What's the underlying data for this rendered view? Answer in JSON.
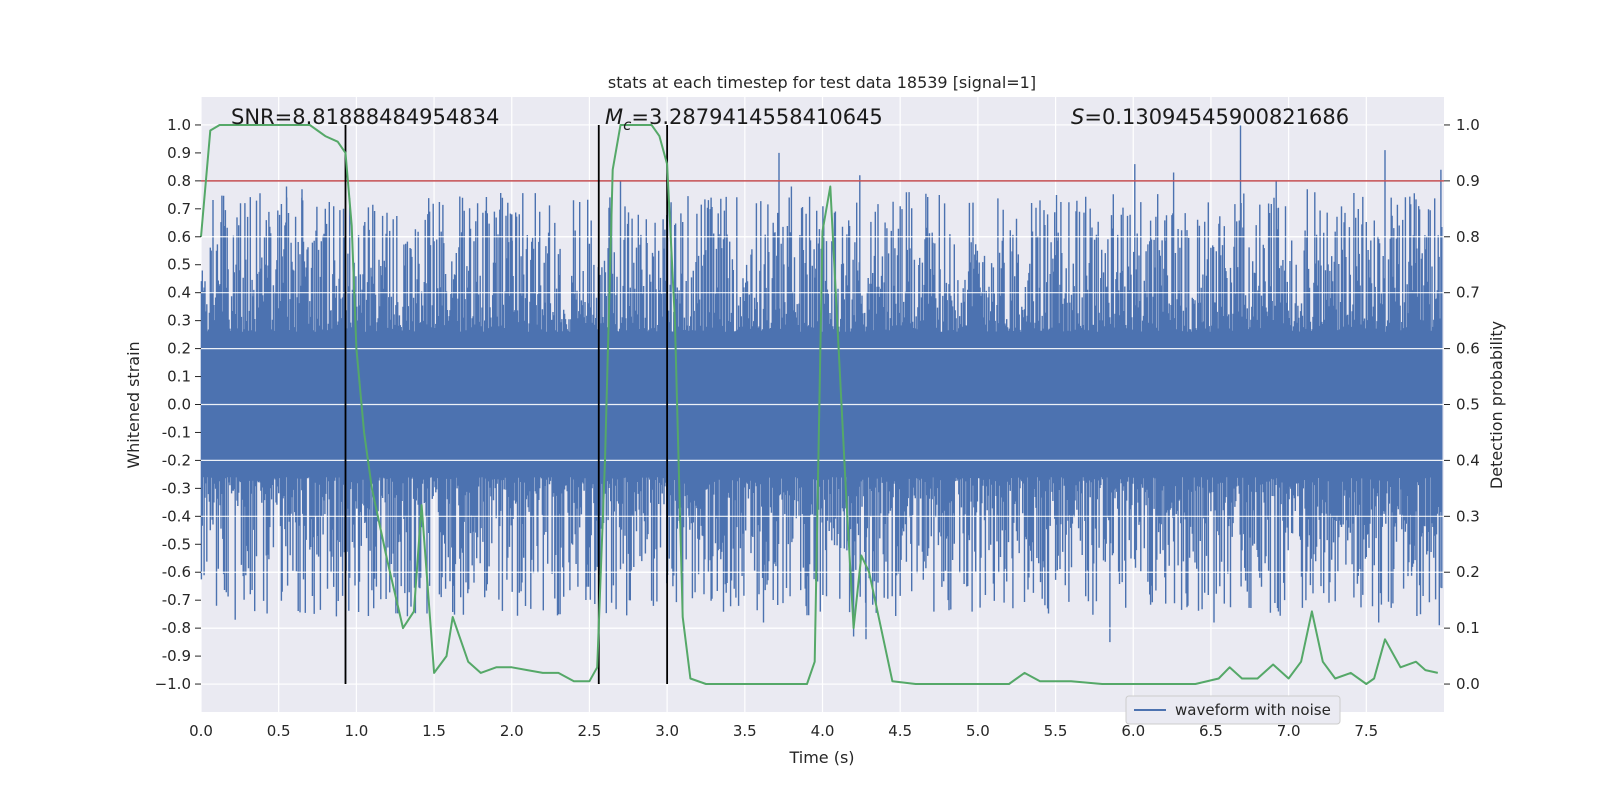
{
  "chart_data": {
    "type": "line",
    "title": "stats at each timestep for test data 18539 [signal=1]",
    "xlabel": "Time (s)",
    "ylabel_left": "Whitened strain",
    "ylabel_right": "Detection probability",
    "xlim": [
      0.0,
      8.0
    ],
    "ylim_left": [
      -1.1,
      1.1
    ],
    "ylim_right": [
      -0.05,
      1.05
    ],
    "x_ticks": [
      "0.0",
      "0.5",
      "1.0",
      "1.5",
      "2.0",
      "2.5",
      "3.0",
      "3.5",
      "4.0",
      "4.5",
      "5.0",
      "5.5",
      "6.0",
      "6.5",
      "7.0",
      "7.5"
    ],
    "y_ticks_left": [
      "1.0",
      "0.9",
      "0.8",
      "0.7",
      "0.6",
      "0.5",
      "0.4",
      "0.3",
      "0.2",
      "0.1",
      "0.0",
      "-0.1",
      "-0.2",
      "-0.3",
      "-0.4",
      "-0.5",
      "-0.6",
      "-0.7",
      "-0.8",
      "-0.9",
      "−1.0"
    ],
    "y_ticks_right": [
      "1.0",
      "0.9",
      "0.8",
      "0.7",
      "0.6",
      "0.5",
      "0.4",
      "0.3",
      "0.2",
      "0.1",
      "0.0"
    ],
    "grid": true,
    "legend_position": "lower-right",
    "legend": [
      {
        "label": "waveform with noise",
        "color": "#4c72b0"
      }
    ],
    "annotations": [
      {
        "prefix": "SNR",
        "text": "=8.81888484954834"
      },
      {
        "prefix": "M",
        "subscript": "c",
        "text": "=3.2879414558410645"
      },
      {
        "prefix": "S",
        "text": "=0.13094545900821686"
      }
    ],
    "threshold": {
      "axis": "right",
      "value": 0.9,
      "color": "#c44e52"
    },
    "vertical_markers": [
      {
        "x": 0.93,
        "y_from": -1.0,
        "y_to": 1.0
      },
      {
        "x": 2.56,
        "y_from": -1.0,
        "y_to": 1.0
      },
      {
        "x": 3.0,
        "y_from": -1.0,
        "y_to": 1.0
      }
    ],
    "series": [
      {
        "name": "waveform with noise",
        "axis": "left",
        "color": "#4c72b0",
        "envelope": {
          "typical_upper": 0.45,
          "typical_lower": -0.45,
          "peak_range": [
            -0.95,
            1.0
          ],
          "core_fill": [
            -0.2,
            0.2
          ]
        },
        "upper_peaks": [
          {
            "x": 0.55,
            "y": 0.78
          },
          {
            "x": 0.65,
            "y": 0.77
          },
          {
            "x": 0.8,
            "y": 0.7
          },
          {
            "x": 1.78,
            "y": 0.72
          },
          {
            "x": 2.0,
            "y": 0.68
          },
          {
            "x": 2.7,
            "y": 0.8
          },
          {
            "x": 3.72,
            "y": 0.9
          },
          {
            "x": 3.8,
            "y": 0.78
          },
          {
            "x": 4.24,
            "y": 0.82
          },
          {
            "x": 5.4,
            "y": 0.73
          },
          {
            "x": 6.01,
            "y": 0.86
          },
          {
            "x": 6.26,
            "y": 0.83
          },
          {
            "x": 6.69,
            "y": 1.0
          },
          {
            "x": 6.92,
            "y": 0.8
          },
          {
            "x": 7.12,
            "y": 0.77
          },
          {
            "x": 7.62,
            "y": 0.91
          },
          {
            "x": 7.98,
            "y": 0.84
          }
        ],
        "lower_peaks": [
          {
            "x": 0.1,
            "y": -0.72
          },
          {
            "x": 0.22,
            "y": -0.77
          },
          {
            "x": 0.93,
            "y": -1.0
          },
          {
            "x": 2.3,
            "y": -0.75
          },
          {
            "x": 3.62,
            "y": -0.78
          },
          {
            "x": 4.2,
            "y": -0.83
          },
          {
            "x": 4.28,
            "y": -0.84
          },
          {
            "x": 5.85,
            "y": -0.85
          },
          {
            "x": 6.52,
            "y": -0.78
          },
          {
            "x": 7.58,
            "y": -0.78
          },
          {
            "x": 7.97,
            "y": -0.79
          }
        ]
      },
      {
        "name": "",
        "axis": "right",
        "color": "#55a868",
        "x": [
          0.0,
          0.06,
          0.12,
          0.2,
          0.3,
          0.4,
          0.5,
          0.6,
          0.7,
          0.75,
          0.8,
          0.88,
          0.93,
          0.97,
          1.0,
          1.05,
          1.1,
          1.2,
          1.3,
          1.37,
          1.42,
          1.5,
          1.58,
          1.62,
          1.72,
          1.8,
          1.9,
          2.0,
          2.1,
          2.2,
          2.3,
          2.4,
          2.5,
          2.55,
          2.6,
          2.65,
          2.7,
          2.8,
          2.9,
          2.95,
          3.0,
          3.05,
          3.1,
          3.15,
          3.25,
          3.4,
          3.6,
          3.8,
          3.9,
          3.95,
          4.0,
          4.05,
          4.15,
          4.2,
          4.25,
          4.3,
          4.45,
          4.6,
          4.8,
          5.0,
          5.2,
          5.3,
          5.4,
          5.6,
          5.8,
          6.0,
          6.2,
          6.4,
          6.55,
          6.62,
          6.7,
          6.8,
          6.9,
          7.0,
          7.08,
          7.15,
          7.22,
          7.3,
          7.4,
          7.5,
          7.55,
          7.62,
          7.72,
          7.82,
          7.88,
          7.96
        ],
        "y": [
          0.8,
          0.99,
          1.0,
          1.0,
          1.0,
          1.0,
          1.0,
          1.0,
          1.0,
          0.99,
          0.98,
          0.97,
          0.95,
          0.82,
          0.6,
          0.45,
          0.35,
          0.22,
          0.1,
          0.13,
          0.32,
          0.02,
          0.05,
          0.12,
          0.04,
          0.02,
          0.03,
          0.03,
          0.025,
          0.02,
          0.02,
          0.005,
          0.005,
          0.03,
          0.4,
          0.92,
          1.0,
          1.0,
          1.0,
          0.98,
          0.93,
          0.65,
          0.12,
          0.01,
          0.0,
          0.0,
          0.0,
          0.0,
          0.0,
          0.04,
          0.81,
          0.89,
          0.35,
          0.1,
          0.23,
          0.2,
          0.005,
          0.0,
          0.0,
          0.0,
          0.0,
          0.02,
          0.005,
          0.005,
          0.0,
          0.0,
          0.0,
          0.0,
          0.01,
          0.03,
          0.01,
          0.01,
          0.035,
          0.01,
          0.04,
          0.13,
          0.04,
          0.01,
          0.02,
          0.0,
          0.01,
          0.08,
          0.03,
          0.04,
          0.025,
          0.02
        ]
      }
    ]
  }
}
